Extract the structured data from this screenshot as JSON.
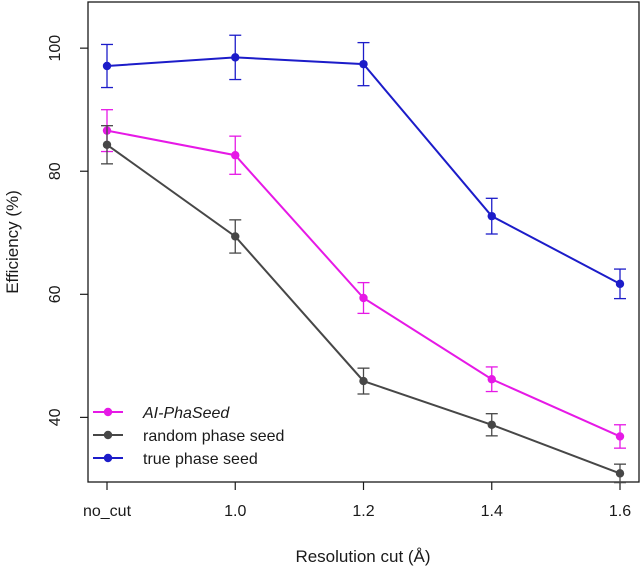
{
  "chart_data": {
    "type": "line",
    "categories": [
      "no_cut",
      "1.0",
      "1.2",
      "1.4",
      "1.6"
    ],
    "xlabel": "Resolution cut (Å)",
    "ylabel": "Efficiency (%)",
    "ylim": [
      29.5,
      107.5
    ],
    "yticks": [
      40,
      60,
      80,
      100
    ],
    "error_bars": true,
    "grid": false,
    "legend_position": "bottom-left",
    "series": [
      {
        "name": "AI-PhaSeed",
        "italic": true,
        "color": "#e619e6",
        "values": [
          86.6,
          82.6,
          59.4,
          46.2,
          36.9
        ],
        "errors": [
          3.4,
          3.1,
          2.5,
          2.0,
          1.9
        ]
      },
      {
        "name": "random phase seed",
        "italic": false,
        "color": "#474747",
        "values": [
          84.3,
          69.4,
          45.9,
          38.8,
          30.9
        ],
        "errors": [
          3.1,
          2.7,
          2.1,
          1.8,
          1.5
        ]
      },
      {
        "name": "true phase seed",
        "italic": false,
        "color": "#1c1cc9",
        "values": [
          97.1,
          98.5,
          97.4,
          72.7,
          61.7
        ],
        "errors": [
          3.5,
          3.6,
          3.5,
          2.9,
          2.4
        ]
      }
    ]
  }
}
